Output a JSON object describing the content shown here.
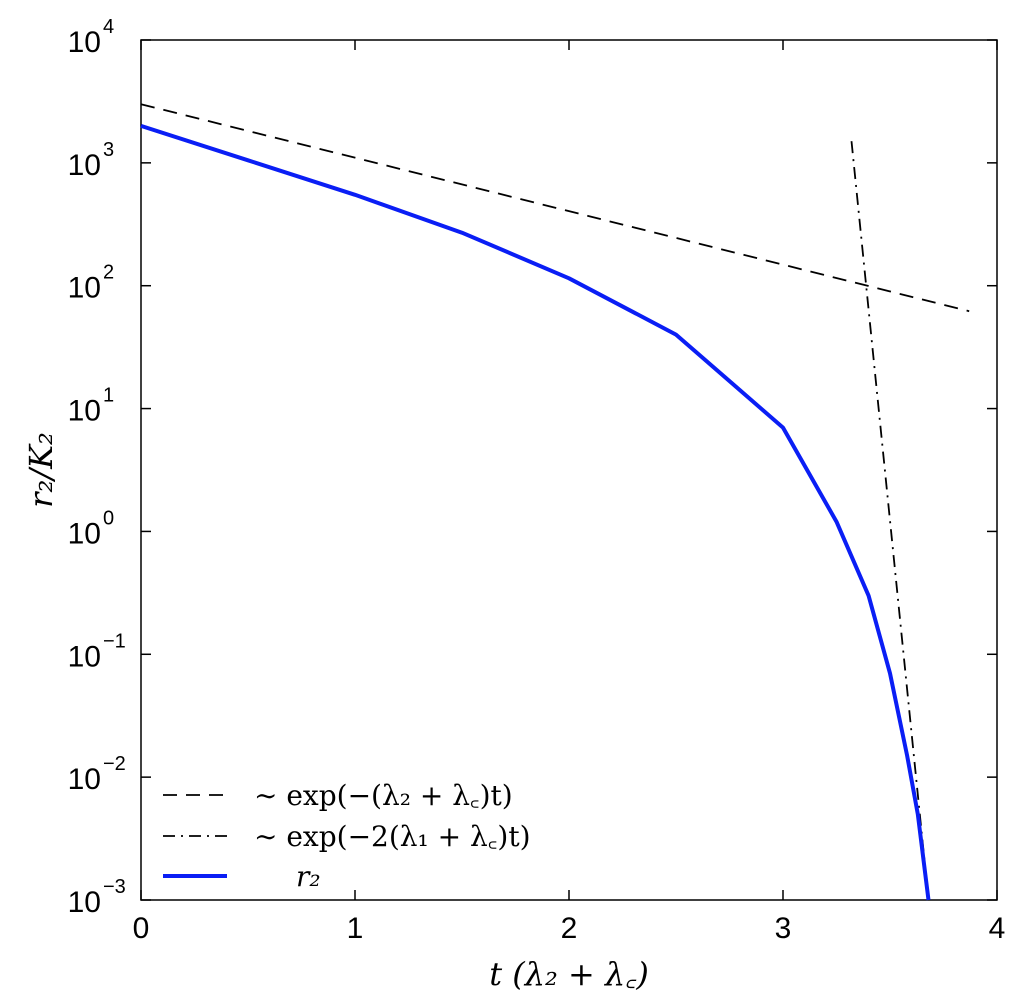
{
  "chart_data": {
    "type": "line",
    "xlabel": "t (λ₂ + λ꜀)",
    "ylabel": "r₂/K₂",
    "xlim": [
      0,
      4
    ],
    "ylim": [
      0.001,
      10000
    ],
    "yscale": "log",
    "grid": false,
    "legend_position": "bottom-left",
    "x_ticks": [
      "0",
      "1",
      "2",
      "3",
      "4"
    ],
    "y_ticks": [
      {
        "value": 0.001,
        "base": "10",
        "exp": "−3"
      },
      {
        "value": 0.01,
        "base": "10",
        "exp": "−2"
      },
      {
        "value": 0.1,
        "base": "10",
        "exp": "−1"
      },
      {
        "value": 1,
        "base": "10",
        "exp": "0"
      },
      {
        "value": 10,
        "base": "10",
        "exp": "1"
      },
      {
        "value": 100,
        "base": "10",
        "exp": "2"
      },
      {
        "value": 1000,
        "base": "10",
        "exp": "3"
      },
      {
        "value": 10000,
        "base": "10",
        "exp": "4"
      }
    ],
    "series": [
      {
        "name": "∼ exp(−(λ₂ + λ꜀)t)",
        "style": "dashed",
        "color": "#000000",
        "x": [
          0,
          3.87
        ],
        "y": [
          3000,
          62
        ]
      },
      {
        "name": "∼ exp(−2(λ₁ + λ꜀)t)",
        "style": "dashdot",
        "color": "#000000",
        "x": [
          3.32,
          3.68
        ],
        "y": [
          1500,
          0.001
        ]
      },
      {
        "name": "r₂",
        "style": "solid",
        "color": "#0a1ef5",
        "x": [
          0,
          0.5,
          1.0,
          1.5,
          2.0,
          2.5,
          3.0,
          3.25,
          3.4,
          3.5,
          3.58,
          3.63,
          3.68
        ],
        "y": [
          2000,
          1050,
          550,
          270,
          115,
          40,
          7,
          1.2,
          0.3,
          0.07,
          0.015,
          0.005,
          0.001
        ]
      }
    ]
  }
}
